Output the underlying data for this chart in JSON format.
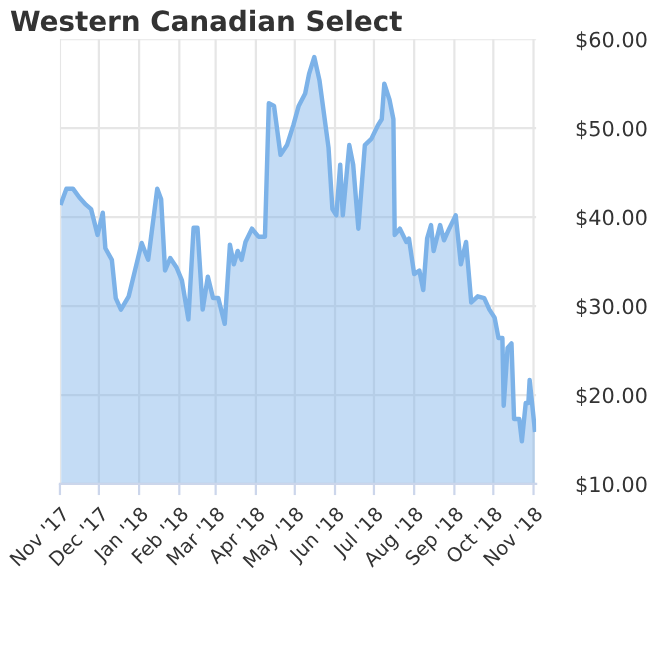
{
  "chart_data": {
    "type": "area",
    "title": "Western Canadian Select",
    "x": [
      "2017-11-02",
      "2017-11-06",
      "2017-11-11",
      "2017-11-16",
      "2017-11-21",
      "2017-11-25",
      "2017-11-30",
      "2017-12-04",
      "2017-12-06",
      "2017-12-11",
      "2017-12-14",
      "2017-12-18",
      "2017-12-24",
      "2017-12-27",
      "2018-01-03",
      "2018-01-08",
      "2018-01-15",
      "2018-01-18",
      "2018-01-21",
      "2018-01-25",
      "2018-01-30",
      "2018-02-03",
      "2018-02-08",
      "2018-02-12",
      "2018-02-15",
      "2018-02-19",
      "2018-02-23",
      "2018-02-27",
      "2018-03-03",
      "2018-03-08",
      "2018-03-12",
      "2018-03-15",
      "2018-03-18",
      "2018-03-21",
      "2018-03-24",
      "2018-03-29",
      "2018-04-03",
      "2018-04-08",
      "2018-04-11",
      "2018-04-15",
      "2018-04-20",
      "2018-04-25",
      "2018-04-30",
      "2018-05-04",
      "2018-05-09",
      "2018-05-12",
      "2018-05-16",
      "2018-05-20",
      "2018-05-27",
      "2018-05-30",
      "2018-06-02",
      "2018-06-05",
      "2018-06-07",
      "2018-06-12",
      "2018-06-15",
      "2018-06-19",
      "2018-06-24",
      "2018-06-29",
      "2018-07-04",
      "2018-07-07",
      "2018-07-09",
      "2018-07-13",
      "2018-07-16",
      "2018-07-17",
      "2018-07-21",
      "2018-07-26",
      "2018-07-28",
      "2018-08-01",
      "2018-08-05",
      "2018-08-08",
      "2018-08-11",
      "2018-08-14",
      "2018-08-16",
      "2018-08-21",
      "2018-08-24",
      "2018-08-28",
      "2018-09-02",
      "2018-09-06",
      "2018-09-10",
      "2018-09-14",
      "2018-09-19",
      "2018-09-24",
      "2018-09-28",
      "2018-10-02",
      "2018-10-05",
      "2018-10-08",
      "2018-10-09",
      "2018-10-12",
      "2018-10-15",
      "2018-10-17",
      "2018-10-21",
      "2018-10-23",
      "2018-10-26",
      "2018-10-28",
      "2018-10-29",
      "2018-11-02"
    ],
    "series": [
      {
        "color": "#7cb2e8",
        "values": [
          41.6,
          43.2,
          43.2,
          42.2,
          41.4,
          40.9,
          38.0,
          40.5,
          36.5,
          35.2,
          30.9,
          29.6,
          31.1,
          32.9,
          37.1,
          35.2,
          43.2,
          42.0,
          34.0,
          35.4,
          34.3,
          32.9,
          28.5,
          38.8,
          38.8,
          29.6,
          33.3,
          30.9,
          30.9,
          28.0,
          36.9,
          34.7,
          36.2,
          35.2,
          37.2,
          38.7,
          37.8,
          37.8,
          52.8,
          52.5,
          47.0,
          48.1,
          50.4,
          52.5,
          53.9,
          56.1,
          58.0,
          55.4,
          47.8,
          40.9,
          40.2,
          45.9,
          40.2,
          48.1,
          45.9,
          38.7,
          48.1,
          48.8,
          50.3,
          51.0,
          55.0,
          53.2,
          51.0,
          38.0,
          38.7,
          37.2,
          37.6,
          33.6,
          34.0,
          31.8,
          37.6,
          39.1,
          36.2,
          39.1,
          37.4,
          38.7,
          40.2,
          34.7,
          37.2,
          30.4,
          31.1,
          30.9,
          29.6,
          28.7,
          26.4,
          26.4,
          18.8,
          25.3,
          25.8,
          17.3,
          17.3,
          14.8,
          19.1,
          19.1,
          21.7,
          16.1
        ]
      }
    ],
    "xlim": [
      "2017-11-01",
      "2018-11-03"
    ],
    "xticks": [
      {
        "value": "2017-11-01",
        "label": "Nov '17"
      },
      {
        "value": "2017-12-01",
        "label": "Dec '17"
      },
      {
        "value": "2018-01-01",
        "label": "Jan '18"
      },
      {
        "value": "2018-02-01",
        "label": "Feb '18"
      },
      {
        "value": "2018-03-01",
        "label": "Mar '18"
      },
      {
        "value": "2018-04-01",
        "label": "Apr '18"
      },
      {
        "value": "2018-05-01",
        "label": "May '18"
      },
      {
        "value": "2018-06-01",
        "label": "Jun '18"
      },
      {
        "value": "2018-07-01",
        "label": "Jul '18"
      },
      {
        "value": "2018-08-01",
        "label": "Aug '18"
      },
      {
        "value": "2018-09-01",
        "label": "Sep '18"
      },
      {
        "value": "2018-10-01",
        "label": "Oct '18"
      },
      {
        "value": "2018-11-01",
        "label": "Nov '18"
      }
    ],
    "ylim": [
      10,
      60
    ],
    "yticks": [
      {
        "value": 10,
        "label": "$10.00"
      },
      {
        "value": 20,
        "label": "$20.00"
      },
      {
        "value": 30,
        "label": "$30.00"
      },
      {
        "value": 40,
        "label": "$40.00"
      },
      {
        "value": 50,
        "label": "$50.00"
      },
      {
        "value": 60,
        "label": "$60.00"
      }
    ],
    "grid": true
  }
}
